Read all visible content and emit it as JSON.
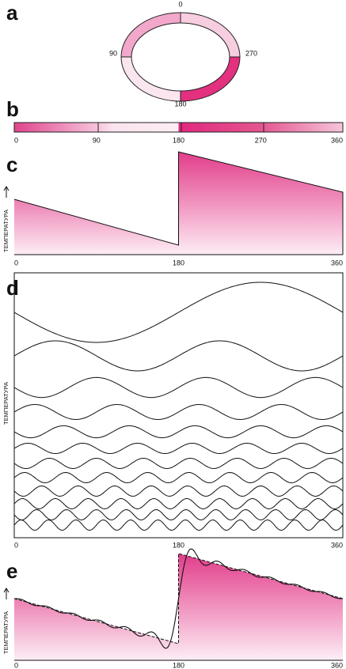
{
  "panels": {
    "a": {
      "label": "a",
      "ticks": [
        "0",
        "90",
        "180",
        "270"
      ]
    },
    "b": {
      "label": "b",
      "ticks": [
        "0",
        "90",
        "180",
        "270",
        "360"
      ]
    },
    "c": {
      "label": "c",
      "axis_label": "ТЕМПЕРАТУРА",
      "ticks": [
        "0",
        "180",
        "360"
      ]
    },
    "d": {
      "label": "d",
      "axis_label": "ТЕМПЕРАТУРА",
      "ticks": [
        "0",
        "180",
        "360"
      ]
    },
    "e": {
      "label": "e",
      "axis_label": "ТЕМПЕРАТУРА",
      "ticks": [
        "0",
        "180",
        "360"
      ]
    }
  }
}
